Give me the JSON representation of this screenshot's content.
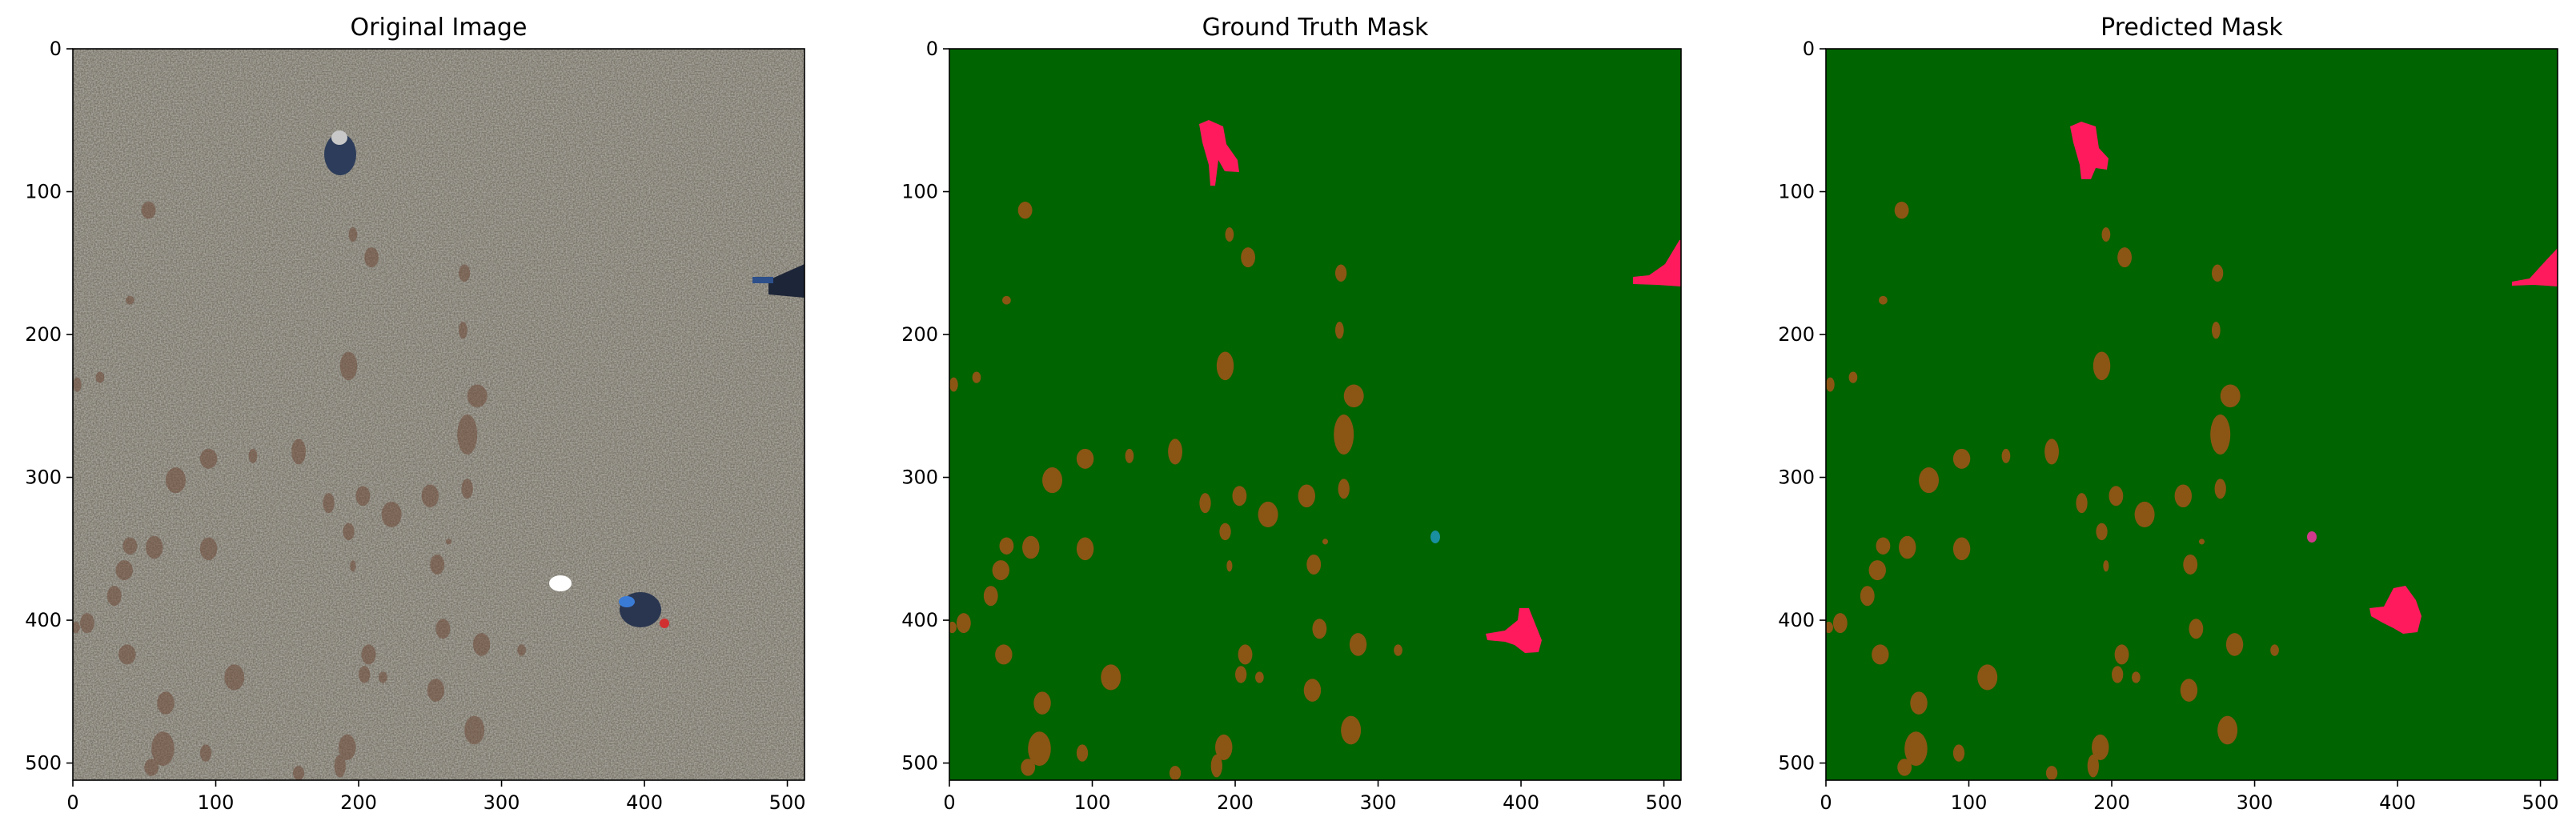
{
  "figure": {
    "panels": [
      {
        "title": "Original Image",
        "kind": "photo"
      },
      {
        "title": "Ground Truth Mask",
        "kind": "mask"
      },
      {
        "title": "Predicted Mask",
        "kind": "mask"
      }
    ]
  },
  "chart_data": [
    {
      "type": "heatmap",
      "title": "Original Image",
      "xlabel": "",
      "ylabel": "",
      "xlim": [
        0,
        512
      ],
      "ylim": [
        512,
        0
      ],
      "xticks": [
        0,
        100,
        200,
        300,
        400,
        500
      ],
      "yticks": [
        0,
        100,
        200,
        300,
        400,
        500
      ]
    },
    {
      "type": "heatmap",
      "title": "Ground Truth Mask",
      "xlabel": "",
      "ylabel": "",
      "xlim": [
        0,
        512
      ],
      "ylim": [
        512,
        0
      ],
      "xticks": [
        0,
        100,
        200,
        300,
        400,
        500
      ],
      "yticks": [
        0,
        100,
        200,
        300,
        400,
        500
      ]
    },
    {
      "type": "heatmap",
      "title": "Predicted Mask",
      "xlabel": "",
      "ylabel": "",
      "xlim": [
        0,
        512
      ],
      "ylim": [
        512,
        0
      ],
      "xticks": [
        0,
        100,
        200,
        300,
        400,
        500
      ],
      "yticks": [
        0,
        100,
        200,
        300,
        400,
        500
      ]
    }
  ],
  "colors": {
    "background_class": "#006400",
    "mound_class": "#8b5513",
    "person_class": "#ff1a5e",
    "object_class_gt": "#1a8fa0",
    "object_class_pred": "#d03a8a",
    "grass_photo": "#7a756a"
  }
}
